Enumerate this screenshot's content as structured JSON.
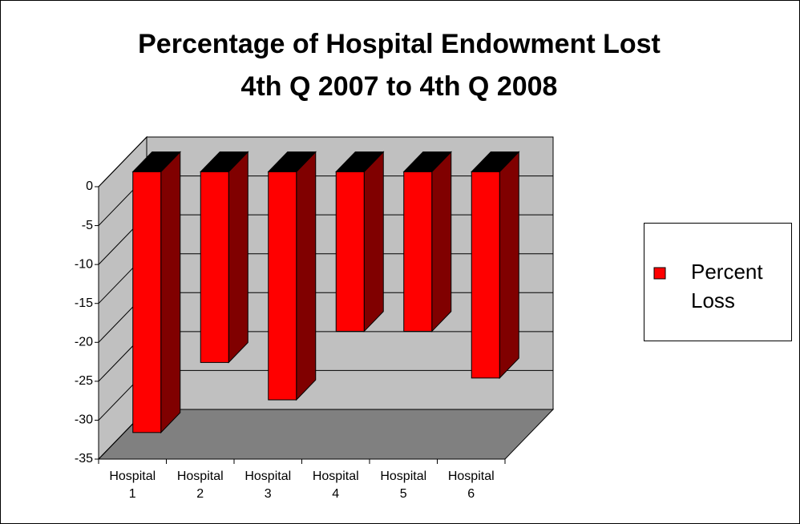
{
  "chart_data": {
    "type": "bar3d",
    "title": [
      "Percentage of Hospital Endowment Lost",
      "4th Q 2007 to 4th Q 2008"
    ],
    "categories": [
      "Hospital 1",
      "Hospital 2",
      "Hospital 3",
      "Hospital 4",
      "Hospital 5",
      "Hospital 6"
    ],
    "series": [
      {
        "name": "Percent Loss",
        "color": "#ff0000",
        "values": [
          -33.5,
          -24.5,
          -29.3,
          -20.5,
          -20.5,
          -26.5
        ]
      }
    ],
    "ylim": [
      -35,
      0
    ],
    "yticks": [
      0,
      -5,
      -10,
      -15,
      -20,
      -25,
      -30,
      -35
    ],
    "grid": true,
    "legend": "right"
  }
}
